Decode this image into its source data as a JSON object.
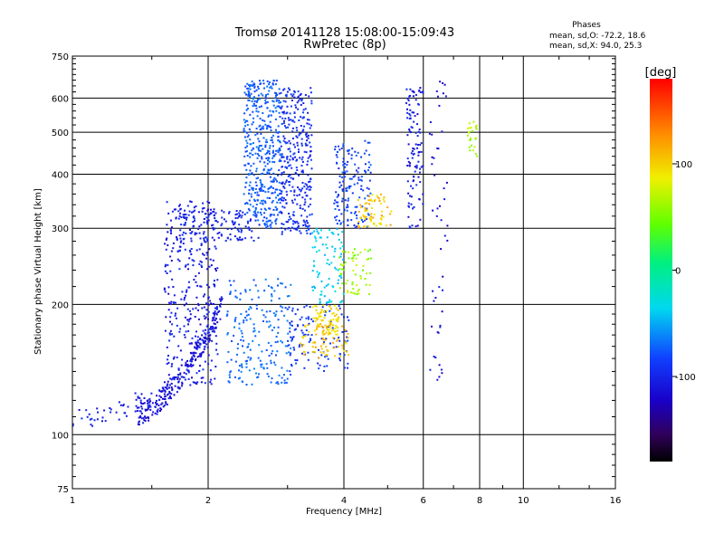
{
  "chart_data": {
    "type": "scatter",
    "title": "Tromsø 20141128 15:08:00-15:09:43",
    "subtitle": "RwPretec (8p)",
    "xlabel": "Frequency [MHz]",
    "ylabel": "Stationary phase Virtual Height [km]",
    "x_scale": "log",
    "y_scale": "log",
    "xlim": [
      1,
      16
    ],
    "ylim": [
      75,
      750
    ],
    "x_ticks": [
      1,
      2,
      4,
      6,
      8,
      10,
      16
    ],
    "x_tick_labels": [
      "1",
      "2",
      "4",
      "6",
      "8",
      "10",
      "16"
    ],
    "y_ticks": [
      75,
      100,
      200,
      300,
      400,
      500,
      600,
      750
    ],
    "y_tick_labels": [
      "75",
      "100",
      "200",
      "300",
      "400",
      "500",
      "600",
      "750"
    ],
    "grid": true,
    "stats": {
      "title": "Phases",
      "o_line": "mean, sd,O: -72.2, 18.6",
      "x_line": "mean, sd,X:  94.0, 25.3"
    },
    "colorbar": {
      "label": "[deg]",
      "range": [
        -180,
        180
      ],
      "ticks": [
        -100,
        0,
        100
      ],
      "tick_labels": [
        "-100",
        "0",
        "100"
      ]
    },
    "clusters": [
      {
        "f": [
          1.0,
          1.5
        ],
        "h": [
          108,
          122
        ],
        "n": 50,
        "phase": [
          -115,
          -95
        ],
        "curve": true
      },
      {
        "f": [
          1.4,
          2.15
        ],
        "h": [
          112,
          200
        ],
        "n": 260,
        "phase": [
          -125,
          -95
        ],
        "curve": true
      },
      {
        "f": [
          1.6,
          2.1
        ],
        "h": [
          130,
          350
        ],
        "n": 330,
        "phase": [
          -120,
          -90
        ]
      },
      {
        "f": [
          1.7,
          2.6
        ],
        "h": [
          280,
          330
        ],
        "n": 130,
        "phase": [
          -110,
          -90
        ]
      },
      {
        "f": [
          2.4,
          2.9
        ],
        "h": [
          300,
          660
        ],
        "n": 440,
        "phase": [
          -85,
          -65
        ]
      },
      {
        "f": [
          2.2,
          3.05
        ],
        "h": [
          130,
          230
        ],
        "n": 200,
        "phase": [
          -80,
          -60
        ]
      },
      {
        "f": [
          2.9,
          3.4
        ],
        "h": [
          290,
          640
        ],
        "n": 320,
        "phase": [
          -110,
          -80
        ]
      },
      {
        "f": [
          3.0,
          4.1
        ],
        "h": [
          140,
          200
        ],
        "n": 120,
        "phase": [
          -100,
          -80
        ]
      },
      {
        "f": [
          3.2,
          4.1
        ],
        "h": [
          150,
          180
        ],
        "n": 70,
        "phase": [
          90,
          120
        ]
      },
      {
        "f": [
          3.4,
          4.0
        ],
        "h": [
          200,
          300
        ],
        "n": 90,
        "phase": [
          -50,
          -30
        ]
      },
      {
        "f": [
          3.4,
          3.9
        ],
        "h": [
          170,
          200
        ],
        "n": 80,
        "phase": [
          85,
          110
        ]
      },
      {
        "f": [
          3.8,
          4.6
        ],
        "h": [
          300,
          480
        ],
        "n": 150,
        "phase": [
          -100,
          -70
        ]
      },
      {
        "f": [
          4.3,
          5.1
        ],
        "h": [
          300,
          360
        ],
        "n": 70,
        "phase": [
          80,
          130
        ]
      },
      {
        "f": [
          3.9,
          4.6
        ],
        "h": [
          210,
          270
        ],
        "n": 60,
        "phase": [
          40,
          80
        ]
      },
      {
        "f": [
          5.5,
          6.0
        ],
        "h": [
          300,
          650
        ],
        "n": 110,
        "phase": [
          -120,
          -90
        ]
      },
      {
        "f": [
          6.2,
          6.8
        ],
        "h": [
          130,
          660
        ],
        "n": 50,
        "phase": [
          -130,
          -100
        ]
      },
      {
        "f": [
          7.5,
          7.9
        ],
        "h": [
          440,
          530
        ],
        "n": 25,
        "phase": [
          50,
          80
        ]
      }
    ]
  }
}
